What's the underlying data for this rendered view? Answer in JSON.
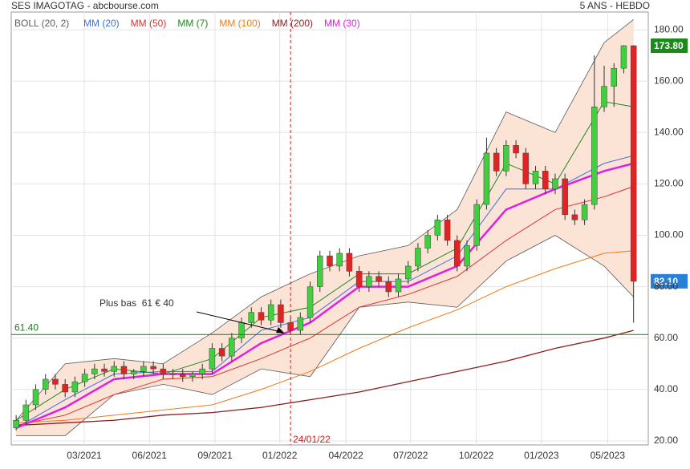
{
  "chart_data": {
    "type": "candlestick",
    "title": "SES IMAGOTAG - abcbourse.com",
    "subtitle": "5 ANS - HEBDO",
    "xlim": [
      0,
      130
    ],
    "xticks": [
      {
        "value": 14.9,
        "label": "03/2021"
      },
      {
        "value": 28.2,
        "label": "06/2021"
      },
      {
        "value": 41.6,
        "label": "09/2021"
      },
      {
        "value": 54.8,
        "label": "01/2022"
      },
      {
        "value": 68.3,
        "label": "04/2022"
      },
      {
        "value": 81.5,
        "label": "07/2022"
      },
      {
        "value": 94.9,
        "label": "10/2022"
      },
      {
        "value": 108.2,
        "label": "01/2023"
      },
      {
        "value": 121.7,
        "label": "05/2023"
      }
    ],
    "ylim": [
      18.4,
      186.9
    ],
    "yticks": [
      {
        "value": 20,
        "label": "20.00"
      },
      {
        "value": 40,
        "label": "40.00"
      },
      {
        "value": 60,
        "label": "60.00"
      },
      {
        "value": 80,
        "label": "80.00"
      },
      {
        "value": 100,
        "label": "100.00"
      },
      {
        "value": 120,
        "label": "120.00"
      },
      {
        "value": 140,
        "label": "140.00"
      },
      {
        "value": 160,
        "label": "160.00"
      },
      {
        "value": 180,
        "label": "180.00"
      }
    ],
    "grid": true,
    "candles": {
      "up_color": "#3fcf3f",
      "down_color": "#e02424",
      "x": [
        1,
        3,
        5,
        7,
        9,
        11,
        13,
        15,
        17,
        19,
        21,
        23,
        25,
        27,
        29,
        31,
        33,
        35,
        37,
        39,
        41,
        43,
        45,
        47,
        49,
        51,
        53,
        55,
        57,
        59,
        61,
        63,
        65,
        67,
        69,
        71,
        73,
        75,
        77,
        79,
        81,
        83,
        85,
        87,
        89,
        91,
        93,
        95,
        97,
        99,
        101,
        103,
        105,
        107,
        109,
        111,
        113,
        115,
        117,
        119,
        121,
        123,
        125,
        127
      ],
      "open": [
        25,
        28,
        34,
        40,
        44,
        42,
        39,
        43,
        46,
        48,
        47,
        49,
        46,
        47,
        49,
        48,
        46,
        46,
        45,
        46,
        48,
        56,
        53,
        60,
        66,
        70,
        67,
        73,
        66,
        63,
        68,
        80,
        92,
        88,
        93,
        86,
        80,
        84,
        82,
        78,
        83,
        88,
        95,
        100,
        106,
        98,
        88,
        96,
        112,
        132,
        125,
        135,
        132,
        120,
        125,
        118,
        122,
        108,
        106,
        112,
        150,
        158,
        165,
        173.8
      ],
      "high": [
        30,
        36,
        42,
        46,
        46,
        44,
        45,
        48,
        50,
        50,
        51,
        51,
        48,
        51,
        51,
        50,
        48,
        48,
        47,
        50,
        58,
        58,
        62,
        68,
        72,
        72,
        75,
        75,
        68,
        70,
        82,
        94,
        94,
        95,
        95,
        88,
        86,
        86,
        84,
        85,
        90,
        97,
        102,
        108,
        108,
        100,
        98,
        114,
        138,
        134,
        137,
        137,
        134,
        127,
        127,
        124,
        124,
        110,
        114,
        170,
        166,
        167,
        174,
        174
      ],
      "low": [
        24,
        26,
        32,
        38,
        40,
        37,
        37,
        41,
        44,
        45,
        45,
        44,
        44,
        45,
        46,
        44,
        44,
        43,
        43,
        44,
        46,
        51,
        51,
        58,
        64,
        65,
        65,
        64,
        61.4,
        61.5,
        66,
        78,
        86,
        86,
        84,
        78,
        78,
        80,
        76,
        76,
        81,
        86,
        93,
        98,
        96,
        86,
        86,
        94,
        110,
        123,
        123,
        130,
        118,
        118,
        116,
        116,
        106,
        104,
        104,
        110,
        148,
        150,
        163,
        66
      ],
      "close": [
        28,
        34,
        40,
        44,
        42,
        39,
        43,
        46,
        48,
        47,
        49,
        46,
        47,
        49,
        48,
        46,
        46,
        45,
        46,
        48,
        56,
        53,
        60,
        66,
        70,
        67,
        73,
        66,
        63,
        68,
        80,
        92,
        88,
        93,
        86,
        80,
        84,
        82,
        78,
        83,
        88,
        95,
        100,
        106,
        98,
        88,
        96,
        112,
        132,
        125,
        135,
        132,
        120,
        125,
        118,
        122,
        108,
        106,
        112,
        150,
        158,
        165,
        173.8,
        82.1
      ]
    },
    "bands": {
      "name": "BOLL (20, 2)",
      "color": "#5a5a5a",
      "fill": "#fbe3d6",
      "x": [
        1,
        11,
        21,
        31,
        41,
        51,
        61,
        71,
        81,
        91,
        101,
        111,
        121,
        127
      ],
      "upper": [
        28,
        50,
        52,
        50,
        62,
        76,
        85,
        92,
        96,
        110,
        148,
        140,
        175,
        184
      ],
      "lower": [
        22,
        22,
        38,
        42,
        38,
        48,
        45,
        72,
        74,
        72,
        90,
        100,
        88,
        76
      ]
    },
    "series": [
      {
        "name": "MM (20)",
        "color": "#3a6fe0",
        "width": 1,
        "x": [
          1,
          11,
          21,
          31,
          41,
          51,
          61,
          71,
          81,
          91,
          101,
          111,
          121,
          127
        ],
        "values": [
          25,
          36,
          46,
          47,
          47,
          63,
          68,
          82,
          82,
          92,
          118,
          118,
          128,
          131
        ]
      },
      {
        "name": "MM (50)",
        "color": "#e03030",
        "width": 1,
        "x": [
          1,
          11,
          21,
          31,
          41,
          51,
          61,
          71,
          81,
          91,
          101,
          111,
          121,
          127
        ],
        "values": [
          26,
          30,
          38,
          44,
          45,
          52,
          60,
          72,
          77,
          84,
          98,
          110,
          115,
          119
        ]
      },
      {
        "name": "MM (7)",
        "color": "#1a8a1a",
        "width": 1,
        "x": [
          1,
          11,
          21,
          31,
          41,
          51,
          61,
          71,
          81,
          91,
          101,
          111,
          121,
          127
        ],
        "values": [
          28,
          40,
          48,
          46,
          52,
          68,
          72,
          85,
          85,
          95,
          128,
          120,
          152,
          150
        ]
      },
      {
        "name": "MM (100)",
        "color": "#f07a1a",
        "width": 1,
        "x": [
          1,
          11,
          21,
          31,
          41,
          51,
          61,
          71,
          81,
          91,
          101,
          111,
          121,
          127
        ],
        "values": [
          27,
          28,
          30,
          32,
          34,
          40,
          47,
          56,
          64,
          71,
          80,
          87,
          93,
          94
        ]
      },
      {
        "name": "MM (200)",
        "color": "#8a1e1e",
        "width": 1.3,
        "x": [
          1,
          11,
          21,
          31,
          41,
          51,
          61,
          71,
          81,
          91,
          101,
          111,
          121,
          127
        ],
        "values": [
          26,
          27,
          28,
          30,
          31,
          33,
          36,
          39,
          43,
          47,
          51,
          56,
          60,
          63
        ]
      },
      {
        "name": "MM (30)",
        "color": "#e020e0",
        "width": 2.5,
        "x": [
          1,
          11,
          21,
          31,
          41,
          51,
          61,
          71,
          81,
          91,
          101,
          111,
          121,
          127
        ],
        "values": [
          25,
          33,
          44,
          46,
          46,
          58,
          66,
          80,
          80,
          88,
          110,
          118,
          125,
          128
        ]
      }
    ],
    "support_line": {
      "value": 61.4,
      "label": "61.40",
      "color": "#1a7a1a"
    },
    "marker": {
      "x": 57,
      "label": "24/01/22",
      "color": "#d02020"
    },
    "annotation": "Plus bas  61 € 40",
    "price_labels": [
      {
        "value": 173.8,
        "label": "173.80",
        "color": "#1a8a1a"
      },
      {
        "value": 82.1,
        "label": "82.10",
        "color": "#2a7fd8"
      }
    ]
  }
}
